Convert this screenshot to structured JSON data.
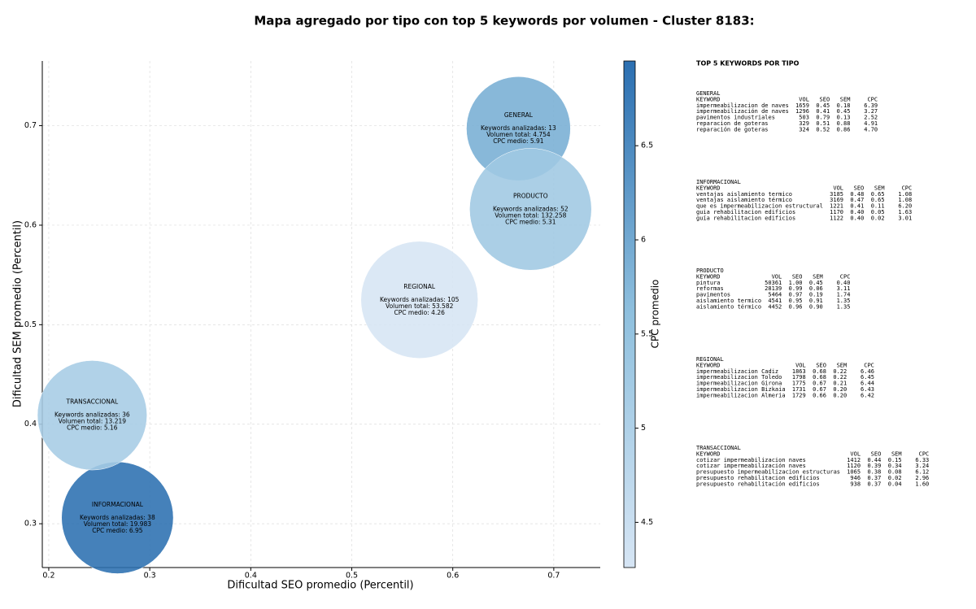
{
  "chart_data": {
    "type": "bubble",
    "title": "Mapa agregado por tipo con top 5 keywords por volumen - Cluster 8183:",
    "x_label": "Dificultad SEO promedio (Percentil)",
    "y_label": "Dificultad SEM promedio (Percentil)",
    "xlim": [
      0.1936,
      0.746
    ],
    "ylim": [
      0.256,
      0.765
    ],
    "xticks": [
      0.2,
      0.3,
      0.4,
      0.5,
      0.6,
      0.7
    ],
    "yticks": [
      0.3,
      0.4,
      0.5,
      0.6,
      0.7
    ],
    "grid": true,
    "colorbar": {
      "label": "CPC promedio",
      "clim": [
        4.26,
        6.95
      ],
      "ticks": [
        4.5,
        5.0,
        5.5,
        6.0,
        6.5
      ],
      "colors": [
        "#d6e5f4",
        "#8fc0de",
        "#2b6fb1"
      ]
    },
    "points": [
      {
        "label": "GENERAL",
        "keywords_label": "Keywords analizadas: 13",
        "volume_label": "Volumen total: 4.754",
        "cpc_label": "CPC medio: 5.91",
        "x": 0.665,
        "y": 0.697,
        "volume": 4754,
        "cpc": 5.91
      },
      {
        "label": "INFORMACIONAL",
        "keywords_label": "Keywords analizadas: 38",
        "volume_label": "Volumen total: 19.983",
        "cpc_label": "CPC medio: 6.95",
        "x": 0.268,
        "y": 0.306,
        "volume": 19983,
        "cpc": 6.95
      },
      {
        "label": "PRODUCTO",
        "keywords_label": "Keywords analizadas: 52",
        "volume_label": "Volumen total: 132.258",
        "cpc_label": "CPC medio: 5.31",
        "x": 0.677,
        "y": 0.616,
        "volume": 132258,
        "cpc": 5.31
      },
      {
        "label": "REGIONAL",
        "keywords_label": "Keywords analizadas: 105",
        "volume_label": "Volumen total: 53.582",
        "cpc_label": "CPC medio: 4.26",
        "x": 0.567,
        "y": 0.525,
        "volume": 53582,
        "cpc": 4.26
      },
      {
        "label": "TRANSACCIONAL",
        "keywords_label": "Keywords analizadas: 36",
        "volume_label": "Volumen total: 13.219",
        "cpc_label": "CPC medio: 5.16",
        "x": 0.243,
        "y": 0.409,
        "volume": 13219,
        "cpc": 5.16
      }
    ]
  },
  "side_panel": {
    "title": "TOP 5 KEYWORDS POR TIPO",
    "groups": [
      {
        "name": "GENERAL",
        "header": [
          "KEYWORD",
          "VOL",
          "SEO",
          "SEM",
          "CPC"
        ],
        "rows": [
          [
            "impermeabilizacion de naves",
            "1659",
            "0.45",
            "0.18",
            "6.39"
          ],
          [
            "impermeabilización de naves",
            "1296",
            "0.41",
            "0.45",
            "3.27"
          ],
          [
            "pavimentos industriales",
            "503",
            "0.79",
            "0.13",
            "2.52"
          ],
          [
            "reparacion de goteras",
            "329",
            "0.51",
            "0.88",
            "4.91"
          ],
          [
            "reparación de goteras",
            "324",
            "0.52",
            "0.86",
            "4.70"
          ]
        ]
      },
      {
        "name": "INFORMACIONAL",
        "header": [
          "KEYWORD",
          "VOL",
          "SEO",
          "SEM",
          "CPC"
        ],
        "rows": [
          [
            "ventajas aislamiento termico",
            "3185",
            "0.48",
            "0.65",
            "1.08"
          ],
          [
            "ventajas aislamiento térmico",
            "3169",
            "0.47",
            "0.65",
            "1.08"
          ],
          [
            "que es impermeabilizacion estructural",
            "1221",
            "0.41",
            "0.11",
            "6.20"
          ],
          [
            "guia rehabilitacion edificios",
            "1170",
            "0.40",
            "0.05",
            "1.63"
          ],
          [
            "guía rehabilitacion edificios",
            "1122",
            "0.40",
            "0.02",
            "3.01"
          ]
        ]
      },
      {
        "name": "PRODUCTO",
        "header": [
          "KEYWORD",
          "VOL",
          "SEO",
          "SEM",
          "CPC"
        ],
        "rows": [
          [
            "pintura",
            "50361",
            "1.00",
            "0.45",
            "0.40"
          ],
          [
            "reformas",
            "28139",
            "0.99",
            "0.06",
            "3.11"
          ],
          [
            "pavimentos",
            "5464",
            "0.97",
            "0.19",
            "1.74"
          ],
          [
            "aislamiento termico",
            "4541",
            "0.95",
            "0.91",
            "1.35"
          ],
          [
            "aislamiento térmico",
            "4452",
            "0.96",
            "0.90",
            "1.35"
          ]
        ]
      },
      {
        "name": "REGIONAL",
        "header": [
          "KEYWORD",
          "VOL",
          "SEO",
          "SEM",
          "CPC"
        ],
        "rows": [
          [
            "impermeabilizacion Cadiz",
            "1863",
            "0.68",
            "0.22",
            "6.46"
          ],
          [
            "impermeabilizacion Toledo",
            "1798",
            "0.68",
            "0.22",
            "6.45"
          ],
          [
            "impermeabilizacion Girona",
            "1775",
            "0.67",
            "0.21",
            "6.44"
          ],
          [
            "impermeabilizacion Bizkaia",
            "1731",
            "0.67",
            "0.20",
            "6.43"
          ],
          [
            "impermeabilizacion Almeria",
            "1729",
            "0.66",
            "0.20",
            "6.42"
          ]
        ]
      },
      {
        "name": "TRANSACCIONAL",
        "header": [
          "KEYWORD",
          "VOL",
          "SEO",
          "SEM",
          "CPC"
        ],
        "rows": [
          [
            "cotizar impermeabilizacion naves",
            "1412",
            "0.44",
            "0.15",
            "6.33"
          ],
          [
            "cotizar impermeabilización naves",
            "1120",
            "0.39",
            "0.34",
            "3.24"
          ],
          [
            "presupuesto impermeabilizacion estructuras",
            "1065",
            "0.38",
            "0.08",
            "6.12"
          ],
          [
            "presupuesto rehabilitacion edificios",
            "946",
            "0.37",
            "0.02",
            "2.96"
          ],
          [
            "presupuesto rehabilitación edificios",
            "938",
            "0.37",
            "0.04",
            "1.60"
          ]
        ]
      }
    ]
  }
}
